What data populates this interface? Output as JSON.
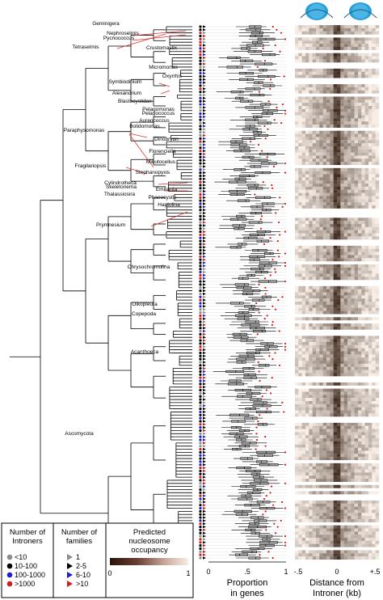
{
  "labels": {
    "clades": [
      {
        "id": "geminigera",
        "text": "Geminigera"
      },
      {
        "id": "nephroselmis",
        "text": "Nephroselmis"
      },
      {
        "id": "pycnococcus",
        "text": "Pycnococcus"
      },
      {
        "id": "tetraselmis",
        "text": "Tetraselmis"
      },
      {
        "id": "crustomastix",
        "text": "Crustomastix"
      },
      {
        "id": "micromonas",
        "text": "Micromonas"
      },
      {
        "id": "oxyrrhis",
        "text": "Oxyrrhis"
      },
      {
        "id": "symbiodinium",
        "text": "Symbiodinium"
      },
      {
        "id": "alexandrium",
        "text": "Alexandrium"
      },
      {
        "id": "blastocystidae",
        "text": "Blastocystidae"
      },
      {
        "id": "pelagomonas1",
        "text": "Pelagomonas"
      },
      {
        "id": "pelagococcus",
        "text": "Pelagococcus"
      },
      {
        "id": "aureococcus",
        "text": "Aureococcus"
      },
      {
        "id": "bolidomonas",
        "text": "Bolidomonas"
      },
      {
        "id": "paraphysomonas",
        "text": "Paraphysomonas"
      },
      {
        "id": "dinobryon",
        "text": "Dinobryon"
      },
      {
        "id": "florenciella",
        "text": "Florenciella"
      },
      {
        "id": "minutocellus",
        "text": "Minutocellus"
      },
      {
        "id": "fragilariopsis",
        "text": "Fragilariopsis"
      },
      {
        "id": "stephanopyxis",
        "text": "Stephanopyxis"
      },
      {
        "id": "cylindrotheca",
        "text": "Cylindrotheca"
      },
      {
        "id": "emiliania",
        "text": "Emiliania"
      },
      {
        "id": "skeletonema",
        "text": "Skeletonema"
      },
      {
        "id": "thalassiosira",
        "text": "Thalassiosira"
      },
      {
        "id": "phaeocystis",
        "text": "Phaeocystis"
      },
      {
        "id": "haptolina",
        "text": "Haptolina"
      },
      {
        "id": "prymnesium",
        "text": "Prymnesium"
      },
      {
        "id": "chrysochromulina",
        "text": "Chrysochromulina"
      },
      {
        "id": "oikopleura",
        "text": "Oikopleura"
      },
      {
        "id": "copepoda",
        "text": "Copepoda"
      },
      {
        "id": "acanthoeca",
        "text": "Acanthoeca"
      },
      {
        "id": "ascomycota",
        "text": "Ascomycota"
      }
    ]
  },
  "axes": {
    "proportion": {
      "ticks": [
        "0",
        ".5",
        "1"
      ],
      "label_line1": "Proportion",
      "label_line2": "in genes"
    },
    "distance": {
      "ticks": [
        "-.5",
        "0",
        "+.5"
      ],
      "label_line1": "Distance from",
      "label_line2": "Introner (kb)"
    }
  },
  "legend": {
    "introners": {
      "title_line1": "Number of",
      "title_line2": "Introners",
      "items": [
        {
          "label": "<10",
          "color": "#8c8c8c"
        },
        {
          "label": "10-100",
          "color": "#000000"
        },
        {
          "label": "100-1000",
          "color": "#1f1fd0"
        },
        {
          "label": ">1000",
          "color": "#d01c1c"
        }
      ]
    },
    "families": {
      "title_line1": "Number of",
      "title_line2": "families",
      "items": [
        {
          "label": "1",
          "color": "#8c8c8c"
        },
        {
          "label": "2-5",
          "color": "#000000"
        },
        {
          "label": "6-10",
          "color": "#1f1fd0"
        },
        {
          "label": ">10",
          "color": "#d01c1c"
        }
      ]
    },
    "occupancy": {
      "title_line1": "Predicted",
      "title_line2": "nucleosome",
      "title_line3": "occupancy",
      "min_label": "0",
      "max_label": "1"
    }
  },
  "colors": {
    "gray": "#8c8c8c",
    "black": "#000000",
    "blue": "#1f1fd0",
    "red": "#d01c1c",
    "label_line": "#e03030",
    "nucleosome": "#2a9fd8"
  }
}
